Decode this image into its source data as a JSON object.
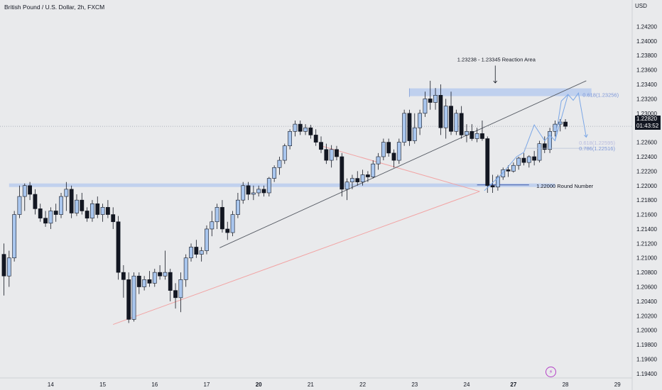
{
  "header": {
    "symbol_title": "British Pound / U.S. Dollar, 2h, FXCM",
    "currency": "USD"
  },
  "price_badge": {
    "price": "1.22820",
    "countdown": "01:43:52"
  },
  "bolt_icon": "lightning-icon",
  "colors": {
    "bull": "#a9c6ee",
    "bull_border": "#131722",
    "bear": "#131722",
    "zone": "#b7cbef",
    "red_line": "#f2a3a3",
    "trend_line": "#555a63",
    "fib": "#7d97d8",
    "projection": "#7aa6e6",
    "background": "#e9eaec"
  },
  "chart_data": {
    "type": "candlestick",
    "symbol": "British Pound / U.S. Dollar",
    "timeframe": "2h",
    "source": "FXCM",
    "y_axis": {
      "currency": "USD",
      "ylim": [
        1.1935,
        1.2442
      ],
      "ticks": [
        "1.24200",
        "1.24000",
        "1.23800",
        "1.23600",
        "1.23400",
        "1.23200",
        "1.23000",
        "1.22600",
        "1.22400",
        "1.22200",
        "1.22000",
        "1.21800",
        "1.21600",
        "1.21400",
        "1.21200",
        "1.21000",
        "1.20800",
        "1.20600",
        "1.20400",
        "1.20200",
        "1.20000",
        "1.19800",
        "1.19600",
        "1.19400"
      ]
    },
    "x_axis": {
      "ticks": [
        {
          "label": "14",
          "bar": 9,
          "bold": false
        },
        {
          "label": "15",
          "bar": 19,
          "bold": false
        },
        {
          "label": "16",
          "bar": 29,
          "bold": false
        },
        {
          "label": "17",
          "bar": 39,
          "bold": false
        },
        {
          "label": "20",
          "bar": 49,
          "bold": true
        },
        {
          "label": "21",
          "bar": 59,
          "bold": false
        },
        {
          "label": "22",
          "bar": 69,
          "bold": false
        },
        {
          "label": "23",
          "bar": 79,
          "bold": false
        },
        {
          "label": "24",
          "bar": 89,
          "bold": false
        },
        {
          "label": "27",
          "bar": 98,
          "bold": true
        },
        {
          "label": "28",
          "bar": 108,
          "bold": false
        },
        {
          "label": "29",
          "bar": 118,
          "bold": false
        }
      ]
    },
    "candles": [
      {
        "o": 1.2105,
        "h": 1.212,
        "l": 1.2048,
        "c": 1.2075
      },
      {
        "o": 1.2075,
        "h": 1.211,
        "l": 1.206,
        "c": 1.21
      },
      {
        "o": 1.21,
        "h": 1.2165,
        "l": 1.2095,
        "c": 1.216
      },
      {
        "o": 1.216,
        "h": 1.22,
        "l": 1.2155,
        "c": 1.2185
      },
      {
        "o": 1.2185,
        "h": 1.2203,
        "l": 1.2165,
        "c": 1.22
      },
      {
        "o": 1.22,
        "h": 1.2205,
        "l": 1.218,
        "c": 1.2188
      },
      {
        "o": 1.2188,
        "h": 1.2195,
        "l": 1.216,
        "c": 1.2168
      },
      {
        "o": 1.2168,
        "h": 1.2175,
        "l": 1.215,
        "c": 1.2155
      },
      {
        "o": 1.2155,
        "h": 1.2165,
        "l": 1.2143,
        "c": 1.2148
      },
      {
        "o": 1.2148,
        "h": 1.217,
        "l": 1.214,
        "c": 1.2165
      },
      {
        "o": 1.2165,
        "h": 1.2175,
        "l": 1.215,
        "c": 1.216
      },
      {
        "o": 1.216,
        "h": 1.219,
        "l": 1.2155,
        "c": 1.2185
      },
      {
        "o": 1.2185,
        "h": 1.2205,
        "l": 1.2165,
        "c": 1.2195
      },
      {
        "o": 1.2195,
        "h": 1.22,
        "l": 1.2155,
        "c": 1.2162
      },
      {
        "o": 1.2162,
        "h": 1.2188,
        "l": 1.2158,
        "c": 1.218
      },
      {
        "o": 1.218,
        "h": 1.219,
        "l": 1.216,
        "c": 1.2165
      },
      {
        "o": 1.2165,
        "h": 1.217,
        "l": 1.215,
        "c": 1.2155
      },
      {
        "o": 1.2155,
        "h": 1.218,
        "l": 1.215,
        "c": 1.2175
      },
      {
        "o": 1.2175,
        "h": 1.2185,
        "l": 1.2155,
        "c": 1.216
      },
      {
        "o": 1.216,
        "h": 1.2175,
        "l": 1.215,
        "c": 1.217
      },
      {
        "o": 1.217,
        "h": 1.218,
        "l": 1.2155,
        "c": 1.216
      },
      {
        "o": 1.216,
        "h": 1.217,
        "l": 1.214,
        "c": 1.215
      },
      {
        "o": 1.215,
        "h": 1.2158,
        "l": 1.207,
        "c": 1.208
      },
      {
        "o": 1.208,
        "h": 1.209,
        "l": 1.2045,
        "c": 1.207
      },
      {
        "o": 1.207,
        "h": 1.208,
        "l": 1.201,
        "c": 1.2015
      },
      {
        "o": 1.2015,
        "h": 1.208,
        "l": 1.2012,
        "c": 1.2075
      },
      {
        "o": 1.2075,
        "h": 1.208,
        "l": 1.205,
        "c": 1.206
      },
      {
        "o": 1.206,
        "h": 1.2075,
        "l": 1.2055,
        "c": 1.207
      },
      {
        "o": 1.207,
        "h": 1.2082,
        "l": 1.206,
        "c": 1.2065
      },
      {
        "o": 1.2065,
        "h": 1.2085,
        "l": 1.206,
        "c": 1.208
      },
      {
        "o": 1.208,
        "h": 1.209,
        "l": 1.207,
        "c": 1.2075
      },
      {
        "o": 1.2075,
        "h": 1.211,
        "l": 1.207,
        "c": 1.208
      },
      {
        "o": 1.208,
        "h": 1.2085,
        "l": 1.204,
        "c": 1.2055
      },
      {
        "o": 1.2055,
        "h": 1.2065,
        "l": 1.203,
        "c": 1.2045
      },
      {
        "o": 1.2045,
        "h": 1.208,
        "l": 1.2025,
        "c": 1.207
      },
      {
        "o": 1.207,
        "h": 1.2105,
        "l": 1.206,
        "c": 1.21
      },
      {
        "o": 1.21,
        "h": 1.212,
        "l": 1.2095,
        "c": 1.2115
      },
      {
        "o": 1.2115,
        "h": 1.2125,
        "l": 1.21,
        "c": 1.2105
      },
      {
        "o": 1.2105,
        "h": 1.2115,
        "l": 1.2095,
        "c": 1.211
      },
      {
        "o": 1.211,
        "h": 1.2145,
        "l": 1.2105,
        "c": 1.214
      },
      {
        "o": 1.214,
        "h": 1.2165,
        "l": 1.213,
        "c": 1.215
      },
      {
        "o": 1.215,
        "h": 1.2175,
        "l": 1.214,
        "c": 1.217
      },
      {
        "o": 1.217,
        "h": 1.218,
        "l": 1.2135,
        "c": 1.214
      },
      {
        "o": 1.214,
        "h": 1.215,
        "l": 1.2125,
        "c": 1.2135
      },
      {
        "o": 1.2135,
        "h": 1.2165,
        "l": 1.213,
        "c": 1.216
      },
      {
        "o": 1.216,
        "h": 1.219,
        "l": 1.2155,
        "c": 1.218
      },
      {
        "o": 1.218,
        "h": 1.2205,
        "l": 1.2175,
        "c": 1.22
      },
      {
        "o": 1.22,
        "h": 1.2205,
        "l": 1.218,
        "c": 1.2188
      },
      {
        "o": 1.2188,
        "h": 1.22,
        "l": 1.218,
        "c": 1.219
      },
      {
        "o": 1.219,
        "h": 1.22,
        "l": 1.2185,
        "c": 1.2195
      },
      {
        "o": 1.2195,
        "h": 1.22,
        "l": 1.2185,
        "c": 1.219
      },
      {
        "o": 1.219,
        "h": 1.2212,
        "l": 1.2185,
        "c": 1.221
      },
      {
        "o": 1.221,
        "h": 1.2228,
        "l": 1.2205,
        "c": 1.2225
      },
      {
        "o": 1.2225,
        "h": 1.224,
        "l": 1.2215,
        "c": 1.2235
      },
      {
        "o": 1.2235,
        "h": 1.2258,
        "l": 1.223,
        "c": 1.2255
      },
      {
        "o": 1.2255,
        "h": 1.2278,
        "l": 1.225,
        "c": 1.2275
      },
      {
        "o": 1.2275,
        "h": 1.229,
        "l": 1.2268,
        "c": 1.2285
      },
      {
        "o": 1.2285,
        "h": 1.229,
        "l": 1.227,
        "c": 1.2275
      },
      {
        "o": 1.2275,
        "h": 1.2285,
        "l": 1.227,
        "c": 1.228
      },
      {
        "o": 1.228,
        "h": 1.2284,
        "l": 1.2265,
        "c": 1.227
      },
      {
        "o": 1.227,
        "h": 1.2278,
        "l": 1.2255,
        "c": 1.226
      },
      {
        "o": 1.226,
        "h": 1.2268,
        "l": 1.2245,
        "c": 1.225
      },
      {
        "o": 1.225,
        "h": 1.2258,
        "l": 1.223,
        "c": 1.2235
      },
      {
        "o": 1.2235,
        "h": 1.2256,
        "l": 1.2225,
        "c": 1.225
      },
      {
        "o": 1.225,
        "h": 1.2255,
        "l": 1.2235,
        "c": 1.224
      },
      {
        "o": 1.224,
        "h": 1.2245,
        "l": 1.2185,
        "c": 1.2195
      },
      {
        "o": 1.2195,
        "h": 1.221,
        "l": 1.218,
        "c": 1.2205
      },
      {
        "o": 1.2205,
        "h": 1.2215,
        "l": 1.2195,
        "c": 1.221
      },
      {
        "o": 1.221,
        "h": 1.222,
        "l": 1.22,
        "c": 1.2205
      },
      {
        "o": 1.2205,
        "h": 1.2222,
        "l": 1.22,
        "c": 1.2215
      },
      {
        "o": 1.2215,
        "h": 1.222,
        "l": 1.2205,
        "c": 1.2212
      },
      {
        "o": 1.2212,
        "h": 1.2235,
        "l": 1.221,
        "c": 1.223
      },
      {
        "o": 1.223,
        "h": 1.2245,
        "l": 1.2222,
        "c": 1.224
      },
      {
        "o": 1.224,
        "h": 1.2265,
        "l": 1.2235,
        "c": 1.226
      },
      {
        "o": 1.226,
        "h": 1.2265,
        "l": 1.224,
        "c": 1.2245
      },
      {
        "o": 1.2245,
        "h": 1.225,
        "l": 1.2225,
        "c": 1.2235
      },
      {
        "o": 1.2235,
        "h": 1.2265,
        "l": 1.223,
        "c": 1.226
      },
      {
        "o": 1.226,
        "h": 1.2305,
        "l": 1.2255,
        "c": 1.23
      },
      {
        "o": 1.23,
        "h": 1.2305,
        "l": 1.2255,
        "c": 1.2262
      },
      {
        "o": 1.2262,
        "h": 1.23,
        "l": 1.2258,
        "c": 1.228
      },
      {
        "o": 1.228,
        "h": 1.2305,
        "l": 1.227,
        "c": 1.23
      },
      {
        "o": 1.23,
        "h": 1.233,
        "l": 1.2295,
        "c": 1.232
      },
      {
        "o": 1.232,
        "h": 1.2345,
        "l": 1.2305,
        "c": 1.2315
      },
      {
        "o": 1.2315,
        "h": 1.2335,
        "l": 1.2305,
        "c": 1.2325
      },
      {
        "o": 1.2325,
        "h": 1.234,
        "l": 1.227,
        "c": 1.228
      },
      {
        "o": 1.228,
        "h": 1.232,
        "l": 1.2265,
        "c": 1.231
      },
      {
        "o": 1.231,
        "h": 1.233,
        "l": 1.227,
        "c": 1.2275
      },
      {
        "o": 1.2275,
        "h": 1.2305,
        "l": 1.227,
        "c": 1.23
      },
      {
        "o": 1.23,
        "h": 1.231,
        "l": 1.2265,
        "c": 1.227
      },
      {
        "o": 1.227,
        "h": 1.2285,
        "l": 1.226,
        "c": 1.2275
      },
      {
        "o": 1.2275,
        "h": 1.2285,
        "l": 1.2262,
        "c": 1.2265
      },
      {
        "o": 1.2265,
        "h": 1.228,
        "l": 1.226,
        "c": 1.2272
      },
      {
        "o": 1.2272,
        "h": 1.229,
        "l": 1.2262,
        "c": 1.2265
      },
      {
        "o": 1.2265,
        "h": 1.2268,
        "l": 1.219,
        "c": 1.22
      },
      {
        "o": 1.22,
        "h": 1.2215,
        "l": 1.219,
        "c": 1.2198
      },
      {
        "o": 1.2198,
        "h": 1.2215,
        "l": 1.2193,
        "c": 1.2212
      },
      {
        "o": 1.2212,
        "h": 1.2225,
        "l": 1.2208,
        "c": 1.2222
      },
      {
        "o": 1.2222,
        "h": 1.2228,
        "l": 1.2212,
        "c": 1.222
      },
      {
        "o": 1.222,
        "h": 1.2232,
        "l": 1.2218,
        "c": 1.2228
      },
      {
        "o": 1.2228,
        "h": 1.224,
        "l": 1.2222,
        "c": 1.2238
      },
      {
        "o": 1.2238,
        "h": 1.2245,
        "l": 1.2228,
        "c": 1.2232
      },
      {
        "o": 1.2232,
        "h": 1.2242,
        "l": 1.2225,
        "c": 1.224
      },
      {
        "o": 1.224,
        "h": 1.2248,
        "l": 1.2228,
        "c": 1.2235
      },
      {
        "o": 1.2235,
        "h": 1.2262,
        "l": 1.2232,
        "c": 1.2258
      },
      {
        "o": 1.2258,
        "h": 1.2268,
        "l": 1.2245,
        "c": 1.225
      },
      {
        "o": 1.225,
        "h": 1.228,
        "l": 1.2245,
        "c": 1.2275
      },
      {
        "o": 1.2275,
        "h": 1.229,
        "l": 1.2268,
        "c": 1.2285
      },
      {
        "o": 1.2285,
        "h": 1.2292,
        "l": 1.2275,
        "c": 1.2288
      },
      {
        "o": 1.2288,
        "h": 1.2292,
        "l": 1.2278,
        "c": 1.2282
      }
    ],
    "annotations": {
      "reaction_zone": {
        "label": "1.23238 - 1.23345 Reaction Area",
        "low": 1.23238,
        "high": 1.23345,
        "from_bar": 78,
        "to_bar": 113
      },
      "round_number": {
        "label": "1.22000 Round Number",
        "low": 1.2196,
        "high": 1.2202,
        "from_bar": 1,
        "to_bar": 106
      },
      "fib_0618_top": {
        "label": "0.618(1.23256)",
        "value": 1.23256
      },
      "fib_0618_low": {
        "label": "0.618(1.22595)",
        "value": 1.22595
      },
      "fib_0786": {
        "label": "0.786(1.22516)",
        "value": 1.22516
      },
      "current_price_line": 1.2282
    }
  }
}
